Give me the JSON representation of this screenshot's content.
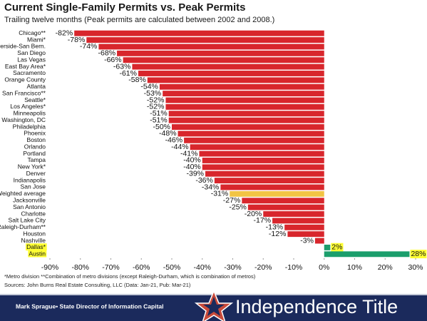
{
  "chart_data": {
    "type": "hbar",
    "title": "Current Single-Family Permits vs. Peak Permits",
    "subtitle": "Trailing twelve months (Peak permits are calculated between 2002 and 2008.)",
    "categories": [
      "Chicago**",
      "Miami*",
      "Riverside-San Bern.",
      "San Diego",
      "Las Vegas",
      "East Bay Area*",
      "Sacramento",
      "Orange County",
      "Atlanta",
      "San Francisco**",
      "Seattle*",
      "Los Angeles*",
      "Minneapolis",
      "Washington, DC",
      "Philadelphia",
      "Phoenix",
      "Boston",
      "Orlando",
      "Portland",
      "Tampa",
      "New York*",
      "Denver",
      "Indianapolis",
      "San Jose",
      "Weighted average",
      "Jacksonville",
      "San Antonio",
      "Charlotte",
      "Salt Lake City",
      "Raleigh-Durham**",
      "Houston",
      "Nashville",
      "Dallas*",
      "Austin"
    ],
    "values": [
      -82,
      -78,
      -74,
      -68,
      -66,
      -63,
      -61,
      -58,
      -54,
      -53,
      -52,
      -52,
      -51,
      -51,
      -50,
      -48,
      -46,
      -44,
      -41,
      -40,
      -40,
      -39,
      -36,
      -34,
      -31,
      -27,
      -25,
      -20,
      -17,
      -13,
      -12,
      -3,
      2,
      28
    ],
    "value_labels": [
      "-82%",
      "-78%",
      "-74%",
      "-68%",
      "-66%",
      "-63%",
      "-61%",
      "-58%",
      "-54%",
      "-53%",
      "-52%",
      "-52%",
      "-51%",
      "-51%",
      "-50%",
      "-48%",
      "-46%",
      "-44%",
      "-41%",
      "-40%",
      "-40%",
      "-39%",
      "-36%",
      "-34%",
      "-31%",
      "-27%",
      "-25%",
      "-20%",
      "-17%",
      "-13%",
      "-12%",
      "-3%",
      "2%",
      "28%"
    ],
    "colors": [
      "#d8262c",
      "#d8262c",
      "#d8262c",
      "#d8262c",
      "#d8262c",
      "#d8262c",
      "#d8262c",
      "#d8262c",
      "#d8262c",
      "#d8262c",
      "#d8262c",
      "#d8262c",
      "#d8262c",
      "#d8262c",
      "#d8262c",
      "#d8262c",
      "#d8262c",
      "#d8262c",
      "#d8262c",
      "#d8262c",
      "#d8262c",
      "#d8262c",
      "#d8262c",
      "#d8262c",
      "#f2c444",
      "#d8262c",
      "#d8262c",
      "#d8262c",
      "#d8262c",
      "#d8262c",
      "#d8262c",
      "#d8262c",
      "#1b9e6c",
      "#1b9e6c"
    ],
    "label_backgrounds": [
      null,
      null,
      null,
      null,
      null,
      null,
      null,
      null,
      null,
      null,
      null,
      null,
      null,
      null,
      null,
      null,
      null,
      null,
      null,
      null,
      null,
      null,
      null,
      null,
      null,
      null,
      null,
      null,
      null,
      null,
      null,
      null,
      "#ffff33",
      "#ffff33"
    ],
    "xlim": [
      -90,
      30
    ],
    "xticks": [
      {
        "value": -90,
        "label": "-90%"
      },
      {
        "value": -80,
        "label": "-80%"
      },
      {
        "value": -70,
        "label": "-70%"
      },
      {
        "value": -60,
        "label": "-60%"
      },
      {
        "value": -50,
        "label": "-50%"
      },
      {
        "value": -40,
        "label": "-40%"
      },
      {
        "value": -30,
        "label": "-30%"
      },
      {
        "value": -20,
        "label": "-20%"
      },
      {
        "value": -10,
        "label": "-10%"
      },
      {
        "value": 0,
        "label": "0%"
      },
      {
        "value": 10,
        "label": "10%"
      },
      {
        "value": 20,
        "label": "20%"
      },
      {
        "value": 30,
        "label": "30%"
      }
    ],
    "notes": [
      "*Metro division  **Combination of metro divisions (except Raleigh-Durham,  which is combination of metros)",
      "Sources: John Burns Real Estate Consulting, LLC (Data: Jan-21, Pub: Mar-21)"
    ]
  },
  "footer": {
    "presenter": "Mark Sprague• State Director of Information Capital",
    "brand": "Independence Title"
  }
}
